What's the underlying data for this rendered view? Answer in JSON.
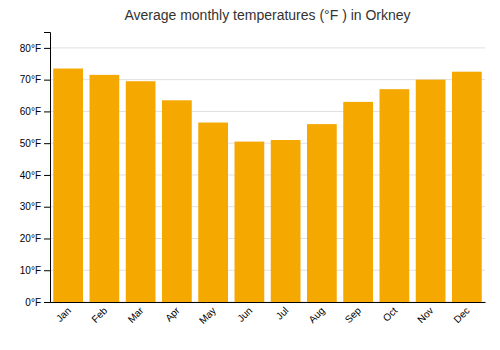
{
  "chart_data": {
    "type": "bar",
    "title": "Average monthly temperatures (°F ) in Orkney",
    "categories": [
      "Jan",
      "Feb",
      "Mar",
      "Apr",
      "May",
      "Jun",
      "Jul",
      "Aug",
      "Sep",
      "Oct",
      "Nov",
      "Dec"
    ],
    "values": [
      73.5,
      71.5,
      69.5,
      63.5,
      56.5,
      50.5,
      51.0,
      56.0,
      63.0,
      67.0,
      70.0,
      72.5
    ],
    "color": "#F5A800",
    "ylim": [
      0,
      85
    ],
    "yticks": [
      {
        "value": 0,
        "label": "0°F"
      },
      {
        "value": 10,
        "label": "10°F"
      },
      {
        "value": 20,
        "label": "20°F"
      },
      {
        "value": 30,
        "label": "30°F"
      },
      {
        "value": 40,
        "label": "40°F"
      },
      {
        "value": 50,
        "label": "50°F"
      },
      {
        "value": 60,
        "label": "60°F"
      },
      {
        "value": 70,
        "label": "70°F"
      },
      {
        "value": 80,
        "label": "80°F"
      }
    ],
    "grid": true
  }
}
